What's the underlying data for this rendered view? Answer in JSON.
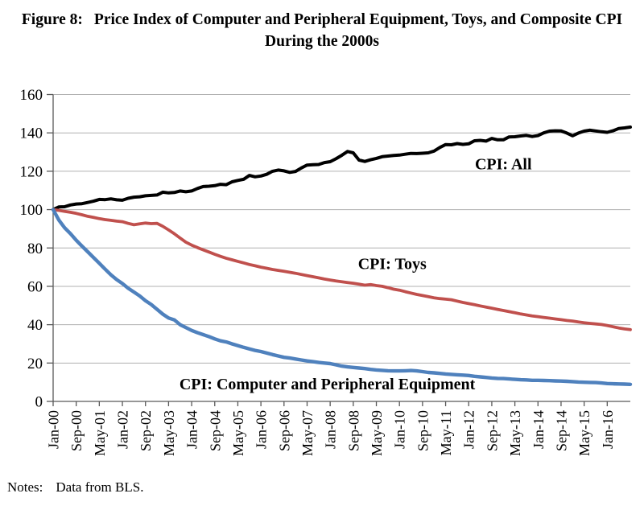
{
  "figure": {
    "title_prefix": "Figure 8:",
    "title_rest": "Price Index of Computer and Peripheral Equipment, Toys, and Composite CPI",
    "title_line2": "During the 2000s"
  },
  "notes": {
    "label": "Notes:",
    "text": "Data from BLS."
  },
  "chart_data": {
    "type": "line",
    "title": "Figure 8: Price Index of Computer and Peripheral Equipment, Toys, and Composite CPI During the 2000s",
    "xlabel": "",
    "ylabel": "",
    "x_unit": "months since Jan-2000",
    "ylim": [
      0,
      160
    ],
    "y_ticks": [
      0,
      20,
      40,
      60,
      80,
      100,
      120,
      140,
      160
    ],
    "grid_on": true,
    "grid_color": "#b0b0b0",
    "axis_color": "#595959",
    "x_max_month": 200,
    "x_tick_months": [
      0,
      8,
      16,
      24,
      32,
      40,
      48,
      56,
      64,
      72,
      80,
      88,
      96,
      104,
      112,
      120,
      128,
      136,
      144,
      152,
      160,
      168,
      176,
      184,
      192
    ],
    "x_tick_labels": [
      "Jan-00",
      "Sep-00",
      "May-01",
      "Jan-02",
      "Sep-02",
      "May-03",
      "Jan-04",
      "Sep-04",
      "May-05",
      "Jan-06",
      "Sep-06",
      "May-07",
      "Jan-08",
      "Sep-08",
      "May-09",
      "Jan-10",
      "Sep-10",
      "May-11",
      "Jan-12",
      "Sep-12",
      "May-13",
      "Jan-14",
      "Sep-14",
      "May-15",
      "Jan-16"
    ],
    "months": [
      0,
      2,
      4,
      6,
      8,
      10,
      12,
      14,
      16,
      18,
      20,
      22,
      24,
      26,
      28,
      30,
      32,
      34,
      36,
      38,
      40,
      42,
      44,
      46,
      48,
      50,
      52,
      54,
      56,
      58,
      60,
      62,
      64,
      66,
      68,
      70,
      72,
      74,
      76,
      78,
      80,
      82,
      84,
      86,
      88,
      90,
      92,
      94,
      96,
      98,
      100,
      102,
      104,
      106,
      108,
      110,
      112,
      114,
      116,
      118,
      120,
      122,
      124,
      126,
      128,
      130,
      132,
      134,
      136,
      138,
      140,
      142,
      144,
      146,
      148,
      150,
      152,
      154,
      156,
      158,
      160,
      162,
      164,
      166,
      168,
      170,
      172,
      174,
      176,
      178,
      180,
      182,
      184,
      186,
      188,
      190,
      192,
      194,
      196,
      198,
      200
    ],
    "series": [
      {
        "name": "CPI: All",
        "color": "#000000",
        "stroke_width": 4,
        "label_pos": {
          "month": 156,
          "value": 124
        },
        "values": [
          100.0,
          101.4,
          101.5,
          102.4,
          102.9,
          103.1,
          103.7,
          104.4,
          105.3,
          105.2,
          105.6,
          105.1,
          104.9,
          105.9,
          106.5,
          106.7,
          107.2,
          107.4,
          107.6,
          109.1,
          108.7,
          108.9,
          109.7,
          109.3,
          109.7,
          111.0,
          112.0,
          112.2,
          112.5,
          113.2,
          113.0,
          114.5,
          115.2,
          115.8,
          117.8,
          117.1,
          117.5,
          118.4,
          120.0,
          120.6,
          120.2,
          119.4,
          119.9,
          121.7,
          123.2,
          123.4,
          123.5,
          124.5,
          125.0,
          126.5,
          128.3,
          130.3,
          129.6,
          125.8,
          125.1,
          126.0,
          126.7,
          127.6,
          127.9,
          128.2,
          128.4,
          128.9,
          129.3,
          129.2,
          129.4,
          129.6,
          130.5,
          132.4,
          133.9,
          133.8,
          134.4,
          134.0,
          134.3,
          135.9,
          136.1,
          135.7,
          137.1,
          136.4,
          136.4,
          137.9,
          138.0,
          138.4,
          138.7,
          138.1,
          138.6,
          140.0,
          140.9,
          141.1,
          141.0,
          139.9,
          138.5,
          139.9,
          140.9,
          141.4,
          141.0,
          140.6,
          140.3,
          141.1,
          142.3,
          142.6,
          143.0
        ]
      },
      {
        "name": "CPI: Toys",
        "color": "#c0504d",
        "stroke_width": 3.8,
        "label_pos": {
          "month": 117.5,
          "value": 72
        },
        "values": [
          100.0,
          99.6,
          99.1,
          98.6,
          98.0,
          97.3,
          96.5,
          95.9,
          95.3,
          94.8,
          94.4,
          94.0,
          93.7,
          92.8,
          92.1,
          92.6,
          93.0,
          92.7,
          92.8,
          91.3,
          89.4,
          87.4,
          85.2,
          83.0,
          81.5,
          80.2,
          79.0,
          77.9,
          76.7,
          75.6,
          74.6,
          73.8,
          73.0,
          72.2,
          71.4,
          70.7,
          70.0,
          69.4,
          68.8,
          68.3,
          67.8,
          67.3,
          66.8,
          66.2,
          65.6,
          65.0,
          64.4,
          63.8,
          63.3,
          62.8,
          62.4,
          62.0,
          61.6,
          61.1,
          60.6,
          60.9,
          60.4,
          60.0,
          59.3,
          58.5,
          58.0,
          57.2,
          56.5,
          55.8,
          55.2,
          54.6,
          54.0,
          53.6,
          53.3,
          53.0,
          52.3,
          51.6,
          51.0,
          50.4,
          49.8,
          49.2,
          48.6,
          48.0,
          47.4,
          46.8,
          46.2,
          45.6,
          45.1,
          44.6,
          44.2,
          43.8,
          43.4,
          43.0,
          42.6,
          42.2,
          41.9,
          41.4,
          41.0,
          40.7,
          40.4,
          40.1,
          39.6,
          38.9,
          38.3,
          37.8,
          37.4
        ]
      },
      {
        "name": "CPI: Computer and Peripheral Equipment",
        "color": "#4f81bd",
        "stroke_width": 4.4,
        "label_pos": {
          "month": 95,
          "value": 9.2
        },
        "values": [
          100.0,
          94.5,
          90.5,
          87.5,
          84.0,
          81.0,
          78.0,
          75.0,
          72.0,
          69.0,
          66.0,
          63.5,
          61.5,
          59.0,
          57.0,
          55.0,
          52.5,
          50.5,
          48.0,
          45.5,
          43.5,
          42.5,
          40.0,
          38.5,
          37.0,
          35.8,
          34.8,
          33.8,
          32.6,
          31.6,
          31.0,
          30.0,
          29.1,
          28.2,
          27.4,
          26.6,
          26.0,
          25.2,
          24.4,
          23.7,
          23.0,
          22.6,
          22.1,
          21.6,
          21.1,
          20.7,
          20.3,
          20.0,
          19.7,
          19.1,
          18.4,
          18.0,
          17.7,
          17.4,
          17.1,
          16.7,
          16.4,
          16.2,
          16.0,
          15.9,
          15.9,
          16.0,
          16.1,
          15.9,
          15.5,
          15.1,
          14.9,
          14.6,
          14.3,
          14.1,
          13.9,
          13.7,
          13.5,
          13.1,
          12.8,
          12.5,
          12.2,
          12.0,
          11.9,
          11.7,
          11.5,
          11.3,
          11.2,
          11.0,
          11.0,
          10.9,
          10.8,
          10.7,
          10.6,
          10.5,
          10.3,
          10.1,
          10.0,
          9.9,
          9.8,
          9.6,
          9.3,
          9.2,
          9.1,
          9.0,
          8.9
        ]
      }
    ]
  }
}
